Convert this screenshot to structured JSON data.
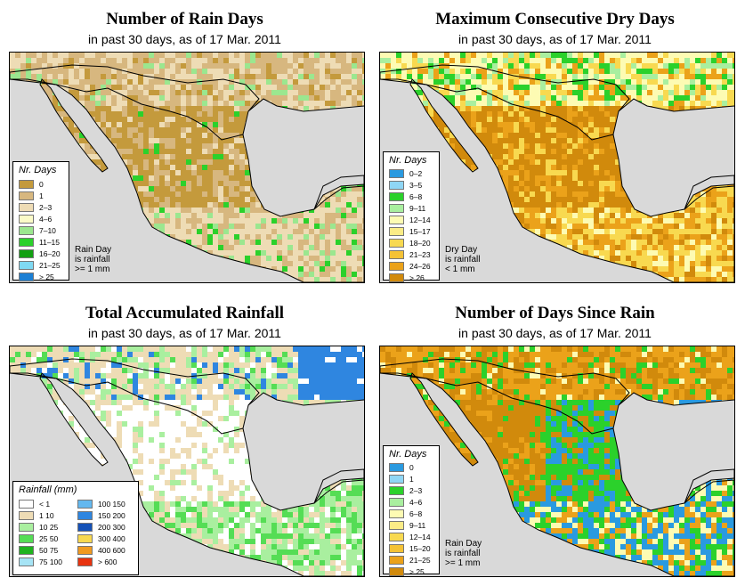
{
  "colors": {
    "ocean": "#d9d9d9",
    "border": "#000000"
  },
  "panels": [
    {
      "title": "Number of Rain Days",
      "subtitle": "in past 30 days, as of  17 Mar. 2011",
      "legend_title": "Nr. Days",
      "legend": [
        {
          "label": "0",
          "color": "#c49a3c"
        },
        {
          "label": "1",
          "color": "#d7b77f"
        },
        {
          "label": "2–3",
          "color": "#eedcb5"
        },
        {
          "label": "4–6",
          "color": "#fbfbc8"
        },
        {
          "label": "7–10",
          "color": "#9be78f"
        },
        {
          "label": "11–15",
          "color": "#2bd12b"
        },
        {
          "label": "16–20",
          "color": "#12a012"
        },
        {
          "label": "21–25",
          "color": "#7fd9f2"
        },
        {
          "label": "> 25",
          "color": "#1b7fd4"
        }
      ],
      "note": [
        "Rain Day",
        "is rainfall",
        ">= 1 mm"
      ],
      "land_color": "#c49a3c",
      "regions": [
        "#c49a3c",
        "#d7b77f",
        "#eedcb5",
        "#9be78f",
        "#2bd12b"
      ]
    },
    {
      "title": "Maximum Consecutive Dry Days",
      "subtitle": "in past 30 days, as of  17 Mar. 2011",
      "legend_title": "Nr. Days",
      "legend": [
        {
          "label": "0–2",
          "color": "#2a9ae0"
        },
        {
          "label": "3–5",
          "color": "#8fd6f5"
        },
        {
          "label": "6–8",
          "color": "#2bd12b"
        },
        {
          "label": "9–11",
          "color": "#a9ef9f"
        },
        {
          "label": "12–14",
          "color": "#fdfbb3"
        },
        {
          "label": "15–17",
          "color": "#fbec86"
        },
        {
          "label": "18–20",
          "color": "#f8d950"
        },
        {
          "label": "21–23",
          "color": "#f4c236"
        },
        {
          "label": "24–26",
          "color": "#eba21a"
        },
        {
          "label": "> 26",
          "color": "#d18a0c"
        }
      ],
      "note": [
        "Dry Day",
        "is rainfall",
        "< 1 mm"
      ],
      "land_color": "#d18a0c",
      "regions": [
        "#d18a0c",
        "#eba21a",
        "#f8d950",
        "#fdfbb3",
        "#a9ef9f",
        "#2bd12b"
      ]
    },
    {
      "title": "Total Accumulated Rainfall",
      "subtitle": "in past 30 days, as of  17 Mar. 2011",
      "legend_title": "Rainfall (mm)",
      "legend": [
        {
          "label": "< 1",
          "color": "#ffffff"
        },
        {
          "label": "1    10",
          "color": "#eedcb5"
        },
        {
          "label": "10    25",
          "color": "#a9ef9f"
        },
        {
          "label": "25    50",
          "color": "#55dd55"
        },
        {
          "label": "50    75",
          "color": "#1fb31f"
        },
        {
          "label": "75    100",
          "color": "#a6e4f5"
        },
        {
          "label": "100    150",
          "color": "#63b8ef"
        },
        {
          "label": "150    200",
          "color": "#2f86e0"
        },
        {
          "label": "200    300",
          "color": "#1451b8"
        },
        {
          "label": "300    400",
          "color": "#f8d950"
        },
        {
          "label": "400    600",
          "color": "#f09a20"
        },
        {
          "label": "> 600",
          "color": "#e8330f"
        }
      ],
      "note": [],
      "land_color": "#ffffff",
      "regions": [
        "#ffffff",
        "#eedcb5",
        "#a9ef9f",
        "#55dd55",
        "#2f86e0"
      ]
    },
    {
      "title": "Number of Days Since Rain",
      "subtitle": "in past 30 days, as of  17 Mar. 2011",
      "legend_title": "Nr. Days",
      "legend": [
        {
          "label": "0",
          "color": "#2a9ae0"
        },
        {
          "label": "1",
          "color": "#8fd6f5"
        },
        {
          "label": "2–3",
          "color": "#2bd12b"
        },
        {
          "label": "4–6",
          "color": "#a9ef9f"
        },
        {
          "label": "6–8",
          "color": "#fdfbb3"
        },
        {
          "label": "9–11",
          "color": "#fbec86"
        },
        {
          "label": "12–14",
          "color": "#f8d950"
        },
        {
          "label": "15–20",
          "color": "#f4c236"
        },
        {
          "label": "21–25",
          "color": "#eba21a"
        },
        {
          "label": "> 25",
          "color": "#d18a0c"
        }
      ],
      "note": [
        "Rain Day",
        "is rainfall",
        ">= 1 mm"
      ],
      "land_color": "#d18a0c",
      "regions": [
        "#d18a0c",
        "#eba21a",
        "#2bd12b",
        "#2a9ae0",
        "#fdfbb3"
      ]
    }
  ]
}
